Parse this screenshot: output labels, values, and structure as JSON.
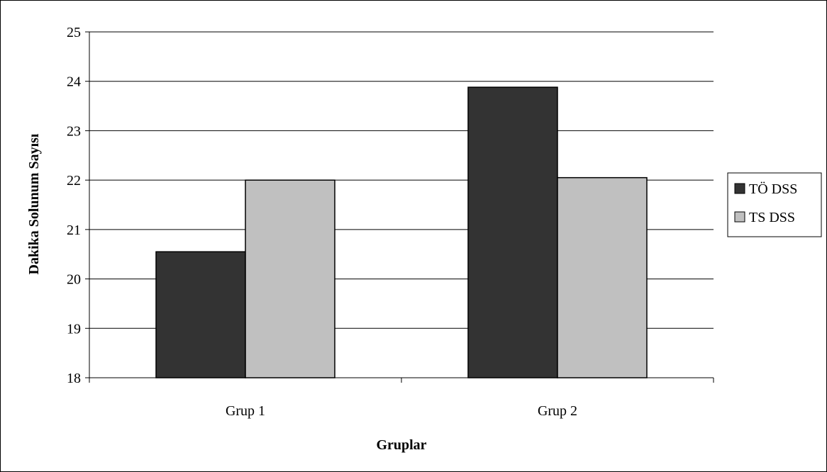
{
  "chart_data": {
    "type": "bar",
    "title": "",
    "xlabel": "Gruplar",
    "ylabel": "Dakika Solunum Sayısı",
    "categories": [
      "Grup 1",
      "Grup 2"
    ],
    "series": [
      {
        "name": "TÖ DSS",
        "values": [
          20.55,
          23.88
        ],
        "color": "#333333"
      },
      {
        "name": "TS DSS",
        "values": [
          22.0,
          22.05
        ],
        "color": "#c0c0c0"
      }
    ],
    "ylim": [
      18,
      25
    ],
    "yticks": [
      18,
      19,
      20,
      21,
      22,
      23,
      24,
      25
    ],
    "grid": true,
    "legend_position": "right"
  }
}
